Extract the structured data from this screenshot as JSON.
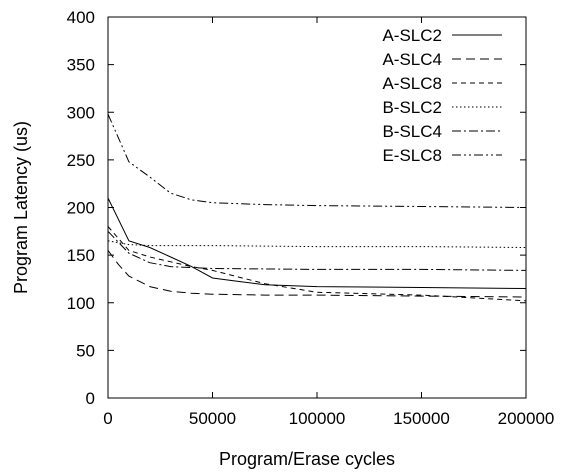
{
  "chart_data": {
    "type": "line",
    "xlabel": "Program/Erase cycles",
    "ylabel": "Program Latency (us)",
    "xlim": [
      0,
      200000
    ],
    "ylim": [
      0,
      400
    ],
    "xticks": [
      0,
      50000,
      100000,
      150000,
      200000
    ],
    "yticks": [
      0,
      50,
      100,
      150,
      200,
      250,
      300,
      350,
      400
    ],
    "xtick_labels": [
      "0",
      "50000",
      "100000",
      "150000",
      "200000"
    ],
    "ytick_labels": [
      "0",
      "50",
      "100",
      "150",
      "200",
      "250",
      "300",
      "350",
      "400"
    ],
    "grid": false,
    "legend_position": "top-right",
    "series": [
      {
        "name": "A-SLC2",
        "dash": "solid",
        "x": [
          0,
          10000,
          20000,
          30000,
          40000,
          50000,
          60000,
          75000,
          100000,
          150000,
          200000
        ],
        "y": [
          210,
          165,
          158,
          148,
          138,
          126,
          123,
          119,
          117,
          116,
          115
        ]
      },
      {
        "name": "A-SLC4",
        "dash": "long-dash",
        "x": [
          0,
          5000,
          10000,
          20000,
          30000,
          40000,
          50000,
          75000,
          100000,
          150000,
          200000
        ],
        "y": [
          155,
          140,
          128,
          117,
          112,
          110,
          109,
          108,
          108,
          107,
          106
        ]
      },
      {
        "name": "A-SLC8",
        "dash": "short-dash",
        "x": [
          0,
          10000,
          20000,
          30000,
          40000,
          50000,
          75000,
          100000,
          150000,
          200000
        ],
        "y": [
          180,
          155,
          148,
          143,
          138,
          134,
          120,
          111,
          108,
          102
        ]
      },
      {
        "name": "B-SLC2",
        "dash": "dotted",
        "x": [
          0,
          10000,
          20000,
          50000,
          100000,
          150000,
          200000
        ],
        "y": [
          165,
          161,
          160,
          160,
          159,
          159,
          158
        ]
      },
      {
        "name": "B-SLC4",
        "dash": "dash-dot",
        "x": [
          0,
          10000,
          20000,
          30000,
          50000,
          100000,
          150000,
          200000
        ],
        "y": [
          175,
          152,
          142,
          138,
          136,
          135,
          135,
          134
        ]
      },
      {
        "name": "E-SLC8",
        "dash": "dash-dot-dot",
        "x": [
          0,
          10000,
          20000,
          30000,
          40000,
          50000,
          75000,
          100000,
          150000,
          200000
        ],
        "y": [
          298,
          248,
          232,
          215,
          208,
          205,
          203,
          202,
          201,
          200
        ]
      }
    ]
  }
}
